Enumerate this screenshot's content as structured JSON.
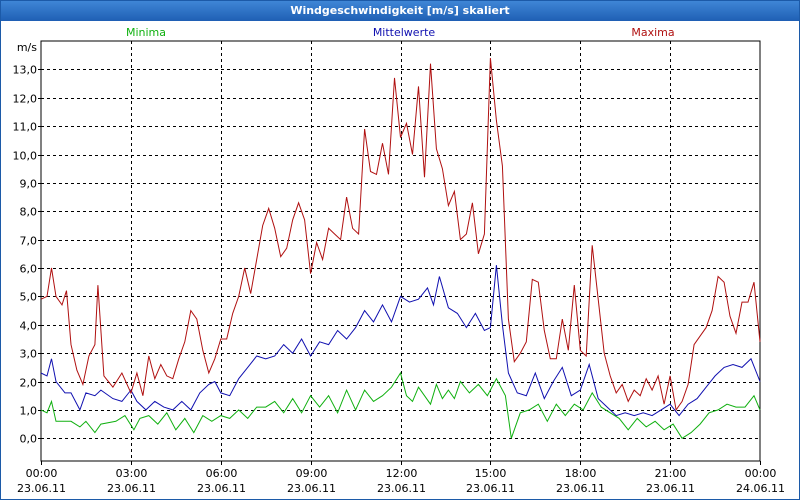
{
  "window": {
    "title": "Windgeschwindigkeit [m/s] skaliert"
  },
  "chart_data": {
    "type": "line",
    "title": "Windgeschwindigkeit [m/s] skaliert",
    "ylabel": "m/s",
    "xlabel": "",
    "ylim": [
      -0.8,
      14.0
    ],
    "xlim": [
      0,
      24
    ],
    "grid": true,
    "yticks": [
      0,
      1,
      2,
      3,
      4,
      5,
      6,
      7,
      8,
      9,
      10,
      11,
      12,
      13
    ],
    "ytick_labels": [
      "0,0",
      "1,0",
      "2,0",
      "3,0",
      "4,0",
      "5,0",
      "6,0",
      "7,0",
      "8,0",
      "9,0",
      "10,0",
      "11,0",
      "12,0",
      "13,0"
    ],
    "xticks": [
      {
        "x": 0,
        "time": "00:00",
        "date": "23.06.11"
      },
      {
        "x": 3,
        "time": "03:00",
        "date": "23.06.11"
      },
      {
        "x": 6,
        "time": "06:00",
        "date": "23.06.11"
      },
      {
        "x": 9,
        "time": "09:00",
        "date": "23.06.11"
      },
      {
        "x": 12,
        "time": "12:00",
        "date": "23.06.11"
      },
      {
        "x": 15,
        "time": "15:00",
        "date": "23.06.11"
      },
      {
        "x": 18,
        "time": "18:00",
        "date": "23.06.11"
      },
      {
        "x": 21,
        "time": "21:00",
        "date": "23.06.11"
      },
      {
        "x": 24,
        "time": "00:00",
        "date": "24.06.11"
      }
    ],
    "series": [
      {
        "name": "Minima",
        "color": "#10b010",
        "legend": "left",
        "points": [
          [
            0,
            1.0
          ],
          [
            0.2,
            0.9
          ],
          [
            0.35,
            1.3
          ],
          [
            0.5,
            0.6
          ],
          [
            1,
            0.6
          ],
          [
            1.3,
            0.4
          ],
          [
            1.5,
            0.6
          ],
          [
            1.8,
            0.2
          ],
          [
            2,
            0.5
          ],
          [
            2.5,
            0.6
          ],
          [
            2.8,
            0.8
          ],
          [
            3.1,
            0.3
          ],
          [
            3.3,
            0.7
          ],
          [
            3.6,
            0.8
          ],
          [
            3.9,
            0.5
          ],
          [
            4.2,
            0.9
          ],
          [
            4.5,
            0.3
          ],
          [
            4.8,
            0.7
          ],
          [
            5.1,
            0.2
          ],
          [
            5.4,
            0.8
          ],
          [
            5.7,
            0.6
          ],
          [
            6,
            0.8
          ],
          [
            6.3,
            0.7
          ],
          [
            6.6,
            1.0
          ],
          [
            6.9,
            0.7
          ],
          [
            7.2,
            1.1
          ],
          [
            7.5,
            1.1
          ],
          [
            7.8,
            1.3
          ],
          [
            8.1,
            0.9
          ],
          [
            8.4,
            1.4
          ],
          [
            8.7,
            0.9
          ],
          [
            9,
            1.5
          ],
          [
            9.3,
            1.1
          ],
          [
            9.6,
            1.5
          ],
          [
            9.9,
            0.9
          ],
          [
            10.2,
            1.7
          ],
          [
            10.5,
            1.0
          ],
          [
            10.8,
            1.7
          ],
          [
            11.1,
            1.3
          ],
          [
            11.4,
            1.5
          ],
          [
            11.7,
            1.8
          ],
          [
            12,
            2.3
          ],
          [
            12.2,
            1.5
          ],
          [
            12.4,
            1.3
          ],
          [
            12.6,
            1.8
          ],
          [
            12.8,
            1.5
          ],
          [
            13,
            1.2
          ],
          [
            13.2,
            1.9
          ],
          [
            13.4,
            1.4
          ],
          [
            13.6,
            1.7
          ],
          [
            13.8,
            1.4
          ],
          [
            14,
            2.0
          ],
          [
            14.3,
            1.6
          ],
          [
            14.6,
            1.9
          ],
          [
            14.9,
            1.5
          ],
          [
            15.2,
            2.1
          ],
          [
            15.5,
            1.5
          ],
          [
            15.7,
            0.0
          ],
          [
            16,
            0.9
          ],
          [
            16.3,
            1.0
          ],
          [
            16.6,
            1.2
          ],
          [
            16.9,
            0.6
          ],
          [
            17.2,
            1.2
          ],
          [
            17.5,
            0.8
          ],
          [
            17.8,
            1.2
          ],
          [
            18.1,
            1.0
          ],
          [
            18.4,
            1.6
          ],
          [
            18.7,
            1.1
          ],
          [
            19,
            0.9
          ],
          [
            19.3,
            0.7
          ],
          [
            19.6,
            0.3
          ],
          [
            19.9,
            0.7
          ],
          [
            20.2,
            0.4
          ],
          [
            20.5,
            0.6
          ],
          [
            20.8,
            0.3
          ],
          [
            21.1,
            0.5
          ],
          [
            21.4,
            0.0
          ],
          [
            21.7,
            0.2
          ],
          [
            22,
            0.5
          ],
          [
            22.3,
            0.9
          ],
          [
            22.6,
            1.0
          ],
          [
            22.9,
            1.2
          ],
          [
            23.2,
            1.1
          ],
          [
            23.5,
            1.1
          ],
          [
            23.8,
            1.5
          ],
          [
            24,
            1.0
          ]
        ]
      },
      {
        "name": "Mittelwerte",
        "color": "#1010b0",
        "legend": "center",
        "points": [
          [
            0,
            2.3
          ],
          [
            0.2,
            2.2
          ],
          [
            0.35,
            2.8
          ],
          [
            0.5,
            2.0
          ],
          [
            0.8,
            1.6
          ],
          [
            1,
            1.6
          ],
          [
            1.3,
            1.0
          ],
          [
            1.5,
            1.6
          ],
          [
            1.8,
            1.5
          ],
          [
            2,
            1.7
          ],
          [
            2.4,
            1.4
          ],
          [
            2.7,
            1.3
          ],
          [
            3,
            1.7
          ],
          [
            3.2,
            1.3
          ],
          [
            3.5,
            1.0
          ],
          [
            3.8,
            1.3
          ],
          [
            4.1,
            1.1
          ],
          [
            4.4,
            1.0
          ],
          [
            4.7,
            1.3
          ],
          [
            5,
            1.0
          ],
          [
            5.3,
            1.6
          ],
          [
            5.6,
            1.9
          ],
          [
            5.8,
            2.0
          ],
          [
            6,
            1.6
          ],
          [
            6.3,
            1.5
          ],
          [
            6.6,
            2.1
          ],
          [
            6.9,
            2.5
          ],
          [
            7.2,
            2.9
          ],
          [
            7.5,
            2.8
          ],
          [
            7.8,
            2.9
          ],
          [
            8.1,
            3.3
          ],
          [
            8.4,
            3.0
          ],
          [
            8.7,
            3.5
          ],
          [
            9,
            2.9
          ],
          [
            9.3,
            3.4
          ],
          [
            9.6,
            3.3
          ],
          [
            9.9,
            3.8
          ],
          [
            10.2,
            3.5
          ],
          [
            10.5,
            3.9
          ],
          [
            10.8,
            4.5
          ],
          [
            11.1,
            4.1
          ],
          [
            11.4,
            4.7
          ],
          [
            11.7,
            4.1
          ],
          [
            12,
            5.0
          ],
          [
            12.3,
            4.8
          ],
          [
            12.6,
            4.9
          ],
          [
            12.9,
            5.3
          ],
          [
            13.1,
            4.7
          ],
          [
            13.3,
            5.7
          ],
          [
            13.6,
            4.6
          ],
          [
            13.9,
            4.4
          ],
          [
            14.2,
            3.9
          ],
          [
            14.5,
            4.4
          ],
          [
            14.8,
            3.8
          ],
          [
            15,
            3.9
          ],
          [
            15.2,
            6.1
          ],
          [
            15.4,
            4.0
          ],
          [
            15.6,
            2.3
          ],
          [
            15.9,
            1.6
          ],
          [
            16.2,
            1.5
          ],
          [
            16.5,
            2.3
          ],
          [
            16.8,
            1.4
          ],
          [
            17.1,
            2.0
          ],
          [
            17.4,
            2.5
          ],
          [
            17.7,
            1.5
          ],
          [
            18,
            1.7
          ],
          [
            18.3,
            2.6
          ],
          [
            18.6,
            1.4
          ],
          [
            18.9,
            1.1
          ],
          [
            19.2,
            0.8
          ],
          [
            19.5,
            0.9
          ],
          [
            19.8,
            0.8
          ],
          [
            20.1,
            0.9
          ],
          [
            20.4,
            0.8
          ],
          [
            20.7,
            1.0
          ],
          [
            21,
            1.2
          ],
          [
            21.3,
            0.8
          ],
          [
            21.6,
            1.2
          ],
          [
            21.9,
            1.4
          ],
          [
            22.2,
            1.8
          ],
          [
            22.5,
            2.2
          ],
          [
            22.8,
            2.5
          ],
          [
            23.1,
            2.6
          ],
          [
            23.4,
            2.5
          ],
          [
            23.7,
            2.8
          ],
          [
            24,
            2.0
          ]
        ]
      },
      {
        "name": "Maxima",
        "color": "#b01010",
        "legend": "right",
        "points": [
          [
            0,
            4.9
          ],
          [
            0.2,
            5.0
          ],
          [
            0.35,
            6.0
          ],
          [
            0.5,
            5.0
          ],
          [
            0.7,
            4.7
          ],
          [
            0.85,
            5.2
          ],
          [
            1,
            3.3
          ],
          [
            1.2,
            2.4
          ],
          [
            1.4,
            1.9
          ],
          [
            1.6,
            2.9
          ],
          [
            1.8,
            3.3
          ],
          [
            1.9,
            5.4
          ],
          [
            2.1,
            2.2
          ],
          [
            2.4,
            1.8
          ],
          [
            2.7,
            2.3
          ],
          [
            3,
            1.6
          ],
          [
            3.2,
            2.3
          ],
          [
            3.4,
            1.5
          ],
          [
            3.6,
            2.9
          ],
          [
            3.8,
            2.1
          ],
          [
            4,
            2.6
          ],
          [
            4.2,
            2.2
          ],
          [
            4.4,
            2.1
          ],
          [
            4.6,
            2.8
          ],
          [
            4.8,
            3.4
          ],
          [
            5,
            4.5
          ],
          [
            5.2,
            4.2
          ],
          [
            5.4,
            3.1
          ],
          [
            5.6,
            2.3
          ],
          [
            5.8,
            2.8
          ],
          [
            6,
            3.5
          ],
          [
            6.2,
            3.5
          ],
          [
            6.4,
            4.4
          ],
          [
            6.6,
            5.0
          ],
          [
            6.8,
            6.0
          ],
          [
            7,
            5.1
          ],
          [
            7.2,
            6.3
          ],
          [
            7.4,
            7.5
          ],
          [
            7.6,
            8.1
          ],
          [
            7.8,
            7.4
          ],
          [
            8,
            6.4
          ],
          [
            8.2,
            6.7
          ],
          [
            8.4,
            7.7
          ],
          [
            8.6,
            8.3
          ],
          [
            8.8,
            7.7
          ],
          [
            9,
            5.8
          ],
          [
            9.2,
            6.9
          ],
          [
            9.4,
            6.3
          ],
          [
            9.6,
            7.4
          ],
          [
            9.8,
            7.2
          ],
          [
            10,
            7.0
          ],
          [
            10.2,
            8.5
          ],
          [
            10.4,
            7.4
          ],
          [
            10.6,
            7.2
          ],
          [
            10.8,
            10.9
          ],
          [
            11,
            9.4
          ],
          [
            11.2,
            9.3
          ],
          [
            11.4,
            10.4
          ],
          [
            11.6,
            9.3
          ],
          [
            11.8,
            12.7
          ],
          [
            12,
            10.6
          ],
          [
            12.2,
            11.1
          ],
          [
            12.4,
            10.0
          ],
          [
            12.6,
            12.4
          ],
          [
            12.8,
            9.2
          ],
          [
            13,
            13.2
          ],
          [
            13.2,
            10.2
          ],
          [
            13.4,
            9.5
          ],
          [
            13.6,
            8.2
          ],
          [
            13.8,
            8.7
          ],
          [
            14,
            7.0
          ],
          [
            14.2,
            7.2
          ],
          [
            14.4,
            8.3
          ],
          [
            14.6,
            6.5
          ],
          [
            14.8,
            7.2
          ],
          [
            15,
            13.4
          ],
          [
            15.2,
            11.2
          ],
          [
            15.4,
            9.6
          ],
          [
            15.6,
            4.2
          ],
          [
            15.8,
            2.7
          ],
          [
            16,
            3.0
          ],
          [
            16.2,
            3.4
          ],
          [
            16.4,
            5.6
          ],
          [
            16.6,
            5.5
          ],
          [
            16.8,
            3.8
          ],
          [
            17,
            2.8
          ],
          [
            17.2,
            2.8
          ],
          [
            17.4,
            4.2
          ],
          [
            17.6,
            3.1
          ],
          [
            17.8,
            5.4
          ],
          [
            18,
            3.1
          ],
          [
            18.2,
            2.9
          ],
          [
            18.4,
            6.8
          ],
          [
            18.6,
            4.9
          ],
          [
            18.8,
            3.0
          ],
          [
            19,
            2.2
          ],
          [
            19.2,
            1.6
          ],
          [
            19.4,
            1.9
          ],
          [
            19.6,
            1.3
          ],
          [
            19.8,
            1.7
          ],
          [
            20,
            1.5
          ],
          [
            20.2,
            2.1
          ],
          [
            20.4,
            1.7
          ],
          [
            20.6,
            2.2
          ],
          [
            20.8,
            1.2
          ],
          [
            21,
            2.2
          ],
          [
            21.2,
            1.0
          ],
          [
            21.4,
            1.3
          ],
          [
            21.6,
            1.9
          ],
          [
            21.8,
            3.3
          ],
          [
            22,
            3.6
          ],
          [
            22.2,
            3.9
          ],
          [
            22.4,
            4.5
          ],
          [
            22.6,
            5.7
          ],
          [
            22.8,
            5.5
          ],
          [
            23,
            4.3
          ],
          [
            23.2,
            3.7
          ],
          [
            23.4,
            4.8
          ],
          [
            23.6,
            4.8
          ],
          [
            23.8,
            5.5
          ],
          [
            24,
            3.4
          ]
        ]
      }
    ]
  }
}
